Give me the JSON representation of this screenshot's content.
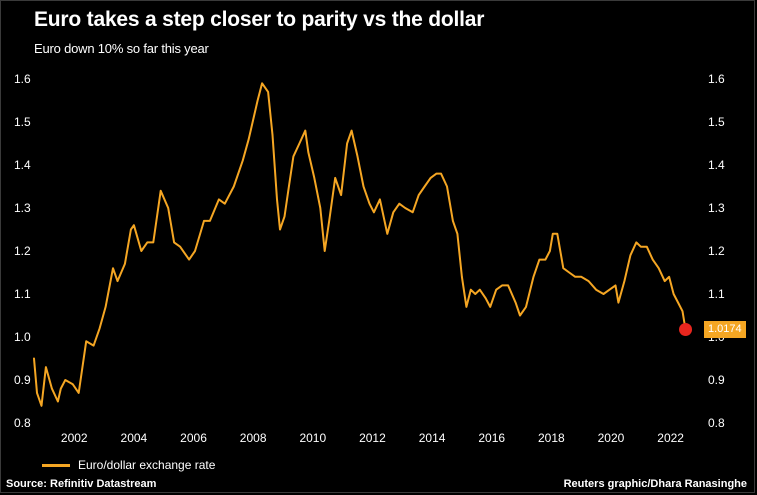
{
  "header": {
    "title": "Euro takes a step closer to parity vs the dollar",
    "subtitle": "Euro down 10% so far this year"
  },
  "footer": {
    "source": "Source: Refinitiv Datastream",
    "credit": "Reuters graphic/Dhara Ranasinghe"
  },
  "colors": {
    "line": "#F5A623",
    "marker": "#E8261E",
    "background": "#000000",
    "text": "#FFFFFF"
  },
  "chart_data": {
    "type": "line",
    "title": "Euro takes a step closer to parity vs the dollar",
    "subtitle": "Euro down 10% so far this year",
    "xlabel": "",
    "ylabel": "",
    "xlim": [
      2000.7,
      2022.7
    ],
    "ylim": [
      0.8,
      1.6
    ],
    "x_ticks": [
      2002,
      2004,
      2006,
      2008,
      2010,
      2012,
      2014,
      2016,
      2018,
      2020,
      2022
    ],
    "y_ticks": [
      0.8,
      0.9,
      1.0,
      1.1,
      1.2,
      1.3,
      1.4,
      1.5,
      1.6
    ],
    "y_tick_labels": [
      "0.8",
      "0.9",
      "1.0",
      "1.1",
      "1.2",
      "1.3",
      "1.4",
      "1.5",
      "1.6"
    ],
    "y_axis_sides": [
      "left",
      "right"
    ],
    "grid": false,
    "legend": "bottom-left",
    "series": [
      {
        "name": "Euro/dollar exchange rate",
        "x": [
          2000.7,
          2000.8,
          2000.95,
          2001.1,
          2001.3,
          2001.5,
          2001.6,
          2001.75,
          2002.0,
          2002.2,
          2002.45,
          2002.7,
          2002.9,
          2003.1,
          2003.35,
          2003.5,
          2003.75,
          2003.95,
          2004.05,
          2004.3,
          2004.5,
          2004.7,
          2004.95,
          2005.2,
          2005.4,
          2005.6,
          2005.9,
          2006.1,
          2006.4,
          2006.6,
          2006.9,
          2007.1,
          2007.4,
          2007.7,
          2007.9,
          2008.2,
          2008.35,
          2008.55,
          2008.7,
          2008.85,
          2008.95,
          2009.1,
          2009.25,
          2009.4,
          2009.6,
          2009.8,
          2009.9,
          2010.1,
          2010.3,
          2010.45,
          2010.6,
          2010.8,
          2011.0,
          2011.2,
          2011.35,
          2011.55,
          2011.75,
          2011.95,
          2012.1,
          2012.3,
          2012.55,
          2012.75,
          2012.95,
          2013.15,
          2013.4,
          2013.6,
          2013.8,
          2014.0,
          2014.2,
          2014.35,
          2014.55,
          2014.75,
          2014.9,
          2015.05,
          2015.2,
          2015.35,
          2015.5,
          2015.65,
          2015.85,
          2016.0,
          2016.2,
          2016.4,
          2016.6,
          2016.85,
          2017.0,
          2017.2,
          2017.45,
          2017.65,
          2017.85,
          2018.0,
          2018.1,
          2018.25,
          2018.45,
          2018.65,
          2018.85,
          2019.05,
          2019.3,
          2019.55,
          2019.8,
          2020.0,
          2020.2,
          2020.3,
          2020.5,
          2020.7,
          2020.9,
          2021.05,
          2021.25,
          2021.45,
          2021.65,
          2021.85,
          2022.0,
          2022.15,
          2022.3,
          2022.45,
          2022.55
        ],
        "values": [
          0.95,
          0.87,
          0.84,
          0.93,
          0.88,
          0.85,
          0.88,
          0.9,
          0.89,
          0.87,
          0.99,
          0.98,
          1.02,
          1.07,
          1.16,
          1.13,
          1.17,
          1.25,
          1.26,
          1.2,
          1.22,
          1.22,
          1.34,
          1.3,
          1.22,
          1.21,
          1.18,
          1.2,
          1.27,
          1.27,
          1.32,
          1.31,
          1.35,
          1.41,
          1.46,
          1.55,
          1.59,
          1.57,
          1.47,
          1.32,
          1.25,
          1.28,
          1.35,
          1.42,
          1.45,
          1.48,
          1.43,
          1.37,
          1.3,
          1.2,
          1.27,
          1.37,
          1.33,
          1.45,
          1.48,
          1.42,
          1.35,
          1.31,
          1.29,
          1.32,
          1.24,
          1.29,
          1.31,
          1.3,
          1.29,
          1.33,
          1.35,
          1.37,
          1.38,
          1.38,
          1.35,
          1.27,
          1.24,
          1.14,
          1.07,
          1.11,
          1.1,
          1.11,
          1.09,
          1.07,
          1.11,
          1.12,
          1.12,
          1.08,
          1.05,
          1.07,
          1.14,
          1.18,
          1.18,
          1.2,
          1.24,
          1.24,
          1.16,
          1.15,
          1.14,
          1.14,
          1.13,
          1.11,
          1.1,
          1.11,
          1.12,
          1.08,
          1.13,
          1.19,
          1.22,
          1.21,
          1.21,
          1.18,
          1.16,
          1.13,
          1.14,
          1.1,
          1.08,
          1.06,
          1.0174
        ]
      }
    ],
    "last_value": {
      "x": 2022.55,
      "value": 1.0174,
      "label": "1.0174"
    }
  }
}
